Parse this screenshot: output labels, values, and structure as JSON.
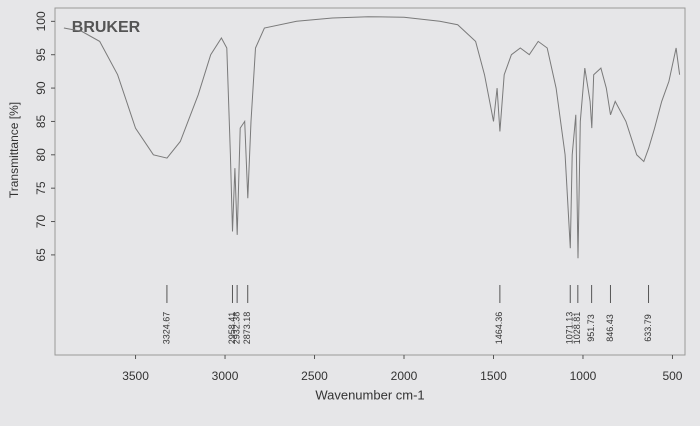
{
  "chart_data": {
    "type": "line",
    "brand": "BRUKER",
    "ylabel": "Transmittance [%]",
    "xlabel": "Wavenumber cm-1",
    "x": [
      3900,
      3800,
      3700,
      3600,
      3500,
      3400,
      3324,
      3250,
      3150,
      3080,
      3020,
      2990,
      2970,
      2958,
      2945,
      2932,
      2915,
      2890,
      2873,
      2855,
      2830,
      2780,
      2600,
      2400,
      2200,
      2000,
      1800,
      1700,
      1600,
      1550,
      1500,
      1480,
      1464,
      1440,
      1400,
      1350,
      1300,
      1250,
      1200,
      1150,
      1100,
      1071,
      1060,
      1040,
      1028,
      1015,
      990,
      960,
      951,
      940,
      900,
      870,
      846,
      820,
      760,
      700,
      660,
      633,
      600,
      560,
      520,
      480,
      460
    ],
    "values": [
      99,
      98.5,
      97,
      92,
      84,
      80,
      79.5,
      82,
      89,
      95,
      97.5,
      96,
      80,
      68.5,
      78,
      68,
      84,
      85,
      73.5,
      85,
      96,
      99,
      100,
      100.5,
      100.7,
      100.6,
      100,
      99.5,
      97,
      92,
      85,
      90,
      83.5,
      92,
      95,
      96,
      95,
      97,
      96,
      90,
      80,
      66,
      80,
      86,
      64.5,
      85,
      93,
      88,
      84,
      92,
      93,
      90,
      86,
      88,
      85,
      80,
      79,
      81,
      84,
      88,
      91,
      96,
      92
    ],
    "color": "#7a7a7a",
    "xlim": [
      3950,
      430
    ],
    "ylim": [
      50,
      102
    ],
    "xticks": [
      3500,
      3000,
      2500,
      2000,
      1500,
      1000,
      500
    ],
    "yticks": [
      65,
      70,
      75,
      80,
      85,
      90,
      95,
      100
    ],
    "peaks": [
      3324.67,
      2958.41,
      2932.38,
      2873.18,
      1464.36,
      1071.13,
      1028.81,
      951.73,
      846.43,
      633.79
    ],
    "grid": false
  }
}
